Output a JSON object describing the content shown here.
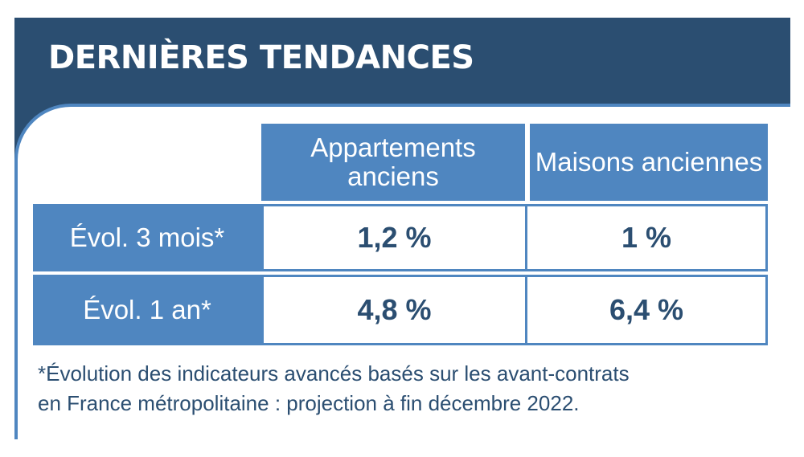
{
  "title": "DERNIÈRES TENDANCES",
  "chart_data": {
    "type": "table",
    "columns": [
      "Appartements anciens",
      "Maisons anciennes"
    ],
    "rows": [
      {
        "label": "Évol. 3 mois*",
        "values": [
          "1,2 %",
          "1 %"
        ]
      },
      {
        "label": "Évol. 1 an*",
        "values": [
          "4,8 %",
          "6,4 %"
        ]
      }
    ]
  },
  "footnote": {
    "line1": "*Évolution des indicateurs avancés basés sur les avant-contrats",
    "line2": "en France métropolitaine : projection à fin décembre 2022."
  },
  "colors": {
    "header_bg": "#2b4e71",
    "accent": "#4f86c0",
    "value_text": "#2b4e71"
  }
}
